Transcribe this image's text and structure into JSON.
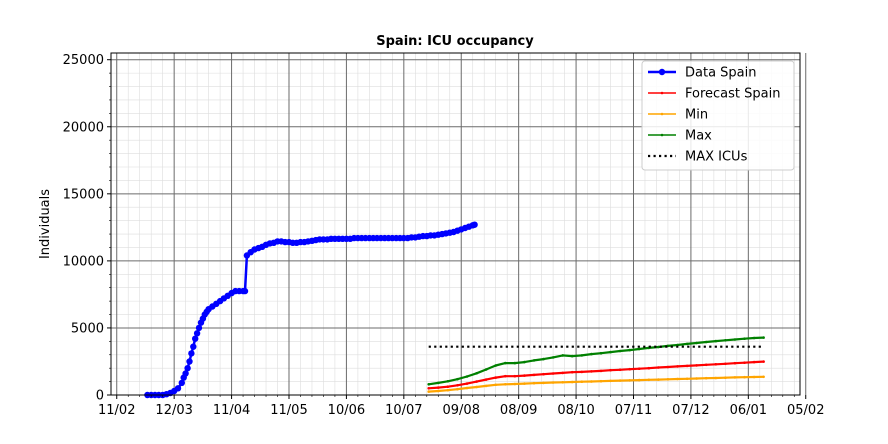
{
  "chart_data": {
    "type": "line",
    "title": "Spain: ICU occupancy",
    "xlabel": "",
    "ylabel": "Individuals",
    "x_tick_labels": [
      "11/02",
      "12/03",
      "11/04",
      "11/05",
      "10/06",
      "10/07",
      "09/08",
      "08/09",
      "08/10",
      "07/11",
      "07/12",
      "06/01",
      "05/02"
    ],
    "y_tick_labels": [
      "0",
      "5000",
      "10000",
      "15000",
      "20000",
      "25000"
    ],
    "xlim_days": [
      -3,
      357
    ],
    "ylim": [
      0,
      25500
    ],
    "grid": true,
    "legend_position": "top-right",
    "series": [
      {
        "name": "Data Spain",
        "color": "#0000ff",
        "style": "line-circle-markers",
        "points": [
          [
            16,
            0
          ],
          [
            18,
            0
          ],
          [
            20,
            0
          ],
          [
            22,
            0
          ],
          [
            24,
            0
          ],
          [
            26,
            60
          ],
          [
            28,
            150
          ],
          [
            30,
            300
          ],
          [
            32,
            500
          ],
          [
            34,
            900
          ],
          [
            35,
            1300
          ],
          [
            36,
            1600
          ],
          [
            37,
            2000
          ],
          [
            38,
            2500
          ],
          [
            39,
            3100
          ],
          [
            40,
            3600
          ],
          [
            41,
            4200
          ],
          [
            42,
            4600
          ],
          [
            43,
            5000
          ],
          [
            44,
            5400
          ],
          [
            45,
            5700
          ],
          [
            46,
            6000
          ],
          [
            47,
            6200
          ],
          [
            48,
            6400
          ],
          [
            50,
            6600
          ],
          [
            52,
            6800
          ],
          [
            54,
            7000
          ],
          [
            56,
            7200
          ],
          [
            58,
            7400
          ],
          [
            60,
            7600
          ],
          [
            62,
            7750
          ],
          [
            64,
            7750
          ],
          [
            66,
            7750
          ],
          [
            67,
            7750
          ],
          [
            68,
            10400
          ],
          [
            70,
            10650
          ],
          [
            72,
            10850
          ],
          [
            74,
            10950
          ],
          [
            76,
            11050
          ],
          [
            78,
            11200
          ],
          [
            80,
            11300
          ],
          [
            82,
            11350
          ],
          [
            84,
            11450
          ],
          [
            86,
            11450
          ],
          [
            88,
            11400
          ],
          [
            90,
            11400
          ],
          [
            92,
            11350
          ],
          [
            94,
            11350
          ],
          [
            96,
            11400
          ],
          [
            98,
            11400
          ],
          [
            100,
            11450
          ],
          [
            102,
            11500
          ],
          [
            104,
            11550
          ],
          [
            106,
            11600
          ],
          [
            108,
            11600
          ],
          [
            110,
            11600
          ],
          [
            112,
            11650
          ],
          [
            114,
            11650
          ],
          [
            116,
            11650
          ],
          [
            118,
            11650
          ],
          [
            120,
            11650
          ],
          [
            122,
            11650
          ],
          [
            124,
            11700
          ],
          [
            126,
            11700
          ],
          [
            128,
            11700
          ],
          [
            130,
            11700
          ],
          [
            132,
            11700
          ],
          [
            134,
            11700
          ],
          [
            136,
            11700
          ],
          [
            138,
            11700
          ],
          [
            140,
            11700
          ],
          [
            142,
            11700
          ],
          [
            144,
            11700
          ],
          [
            146,
            11700
          ],
          [
            148,
            11700
          ],
          [
            150,
            11700
          ],
          [
            152,
            11700
          ],
          [
            154,
            11750
          ],
          [
            156,
            11750
          ],
          [
            158,
            11800
          ],
          [
            160,
            11850
          ],
          [
            162,
            11850
          ],
          [
            164,
            11900
          ],
          [
            166,
            11900
          ],
          [
            168,
            11950
          ],
          [
            170,
            12000
          ],
          [
            172,
            12050
          ],
          [
            174,
            12100
          ],
          [
            176,
            12150
          ],
          [
            178,
            12250
          ],
          [
            180,
            12350
          ],
          [
            182,
            12450
          ],
          [
            184,
            12550
          ],
          [
            186,
            12650
          ],
          [
            187,
            12700
          ]
        ]
      },
      {
        "name": "Forecast Spain",
        "color": "#ff0000",
        "style": "line-small-markers",
        "points": [
          [
            163,
            500
          ],
          [
            168,
            550
          ],
          [
            173,
            620
          ],
          [
            178,
            720
          ],
          [
            183,
            850
          ],
          [
            188,
            1000
          ],
          [
            193,
            1150
          ],
          [
            198,
            1300
          ],
          [
            203,
            1400
          ],
          [
            208,
            1400
          ],
          [
            213,
            1450
          ],
          [
            218,
            1500
          ],
          [
            223,
            1550
          ],
          [
            228,
            1600
          ],
          [
            233,
            1650
          ],
          [
            238,
            1700
          ],
          [
            243,
            1720
          ],
          [
            248,
            1760
          ],
          [
            253,
            1800
          ],
          [
            258,
            1850
          ],
          [
            263,
            1880
          ],
          [
            268,
            1920
          ],
          [
            273,
            1960
          ],
          [
            278,
            2000
          ],
          [
            283,
            2050
          ],
          [
            288,
            2090
          ],
          [
            293,
            2130
          ],
          [
            298,
            2170
          ],
          [
            303,
            2210
          ],
          [
            308,
            2250
          ],
          [
            313,
            2290
          ],
          [
            318,
            2330
          ],
          [
            323,
            2370
          ],
          [
            328,
            2410
          ],
          [
            333,
            2450
          ],
          [
            338,
            2490
          ]
        ]
      },
      {
        "name": "Min",
        "color": "#ffa500",
        "style": "line-small-markers",
        "points": [
          [
            163,
            250
          ],
          [
            168,
            300
          ],
          [
            173,
            360
          ],
          [
            178,
            430
          ],
          [
            183,
            520
          ],
          [
            188,
            600
          ],
          [
            193,
            680
          ],
          [
            198,
            760
          ],
          [
            203,
            800
          ],
          [
            208,
            820
          ],
          [
            213,
            850
          ],
          [
            218,
            880
          ],
          [
            223,
            900
          ],
          [
            228,
            930
          ],
          [
            233,
            950
          ],
          [
            238,
            970
          ],
          [
            243,
            990
          ],
          [
            248,
            1010
          ],
          [
            253,
            1030
          ],
          [
            258,
            1050
          ],
          [
            263,
            1070
          ],
          [
            268,
            1090
          ],
          [
            273,
            1110
          ],
          [
            278,
            1130
          ],
          [
            283,
            1150
          ],
          [
            288,
            1170
          ],
          [
            293,
            1190
          ],
          [
            298,
            1210
          ],
          [
            303,
            1230
          ],
          [
            308,
            1250
          ],
          [
            313,
            1270
          ],
          [
            318,
            1290
          ],
          [
            323,
            1310
          ],
          [
            328,
            1330
          ],
          [
            333,
            1345
          ],
          [
            338,
            1360
          ]
        ]
      },
      {
        "name": "Max",
        "color": "#008000",
        "style": "line-small-markers",
        "points": [
          [
            163,
            800
          ],
          [
            168,
            900
          ],
          [
            173,
            1020
          ],
          [
            178,
            1180
          ],
          [
            183,
            1380
          ],
          [
            188,
            1620
          ],
          [
            193,
            1900
          ],
          [
            198,
            2200
          ],
          [
            203,
            2380
          ],
          [
            208,
            2380
          ],
          [
            213,
            2450
          ],
          [
            218,
            2580
          ],
          [
            223,
            2680
          ],
          [
            228,
            2800
          ],
          [
            233,
            2950
          ],
          [
            238,
            2900
          ],
          [
            243,
            2950
          ],
          [
            248,
            3050
          ],
          [
            253,
            3120
          ],
          [
            258,
            3200
          ],
          [
            263,
            3280
          ],
          [
            268,
            3350
          ],
          [
            273,
            3430
          ],
          [
            278,
            3510
          ],
          [
            283,
            3580
          ],
          [
            288,
            3660
          ],
          [
            293,
            3730
          ],
          [
            298,
            3810
          ],
          [
            303,
            3880
          ],
          [
            308,
            3950
          ],
          [
            313,
            4020
          ],
          [
            318,
            4080
          ],
          [
            323,
            4140
          ],
          [
            328,
            4200
          ],
          [
            333,
            4250
          ],
          [
            338,
            4280
          ]
        ]
      },
      {
        "name": "MAX ICUs",
        "color": "#000000",
        "style": "dotted",
        "points": [
          [
            163,
            3600
          ],
          [
            338,
            3600
          ]
        ]
      }
    ]
  }
}
